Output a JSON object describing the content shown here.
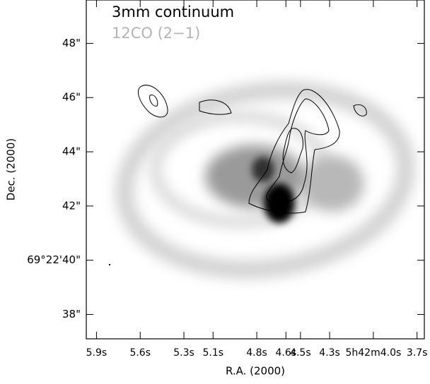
{
  "chart_data": {
    "type": "image",
    "legend": [
      "3mm continuum",
      "12CO (2−1)"
    ],
    "xlabel": "R.A. (2000)",
    "ylabel": "Dec. (2000)",
    "xlim": [
      5.97,
      3.65
    ],
    "xticks": [
      {
        "value": 5.9,
        "label": "5.9s"
      },
      {
        "value": 5.6,
        "label": "5.6s"
      },
      {
        "value": 5.3,
        "label": "5.3s"
      },
      {
        "value": 5.1,
        "label": "5.1s"
      },
      {
        "value": 4.8,
        "label": "4.8s"
      },
      {
        "value": 4.6,
        "label": "4.6s"
      },
      {
        "value": 4.5,
        "label": "4.5s"
      },
      {
        "value": 4.3,
        "label": "4.3s"
      },
      {
        "value": 4.0,
        "label": "5h42m4.0s"
      },
      {
        "value": 3.7,
        "label": "3.7s"
      }
    ],
    "ylim": [
      37.1,
      49.6
    ],
    "yticks": [
      {
        "value": 48,
        "label": "48\""
      },
      {
        "value": 46,
        "label": "46\""
      },
      {
        "value": 44,
        "label": "44\""
      },
      {
        "value": 42,
        "label": "42\""
      },
      {
        "value": 40,
        "label": "69°22'40\""
      },
      {
        "value": 38,
        "label": "38\""
      }
    ]
  }
}
